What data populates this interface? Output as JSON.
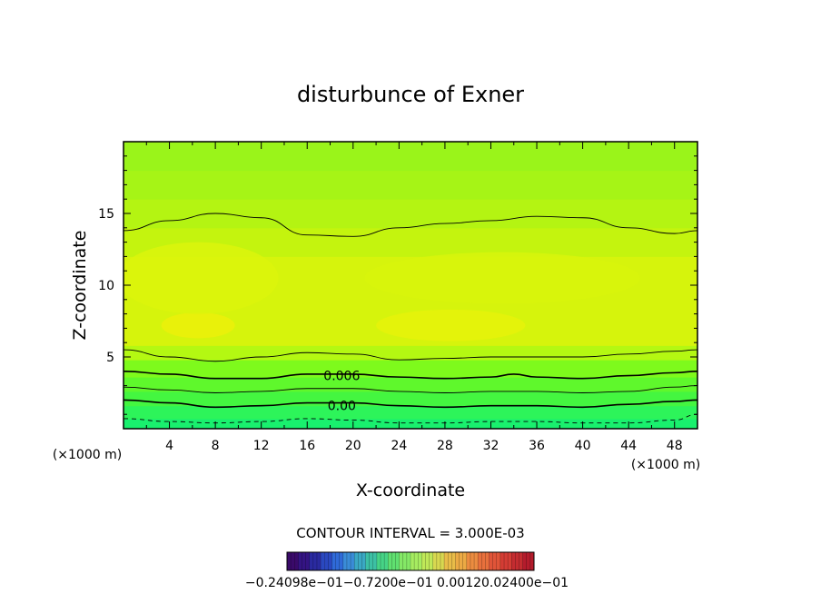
{
  "chart_data": {
    "type": "heatmap",
    "title": "disturbunce of Exner",
    "xlabel": "X-coordinate",
    "ylabel": "Z-coordinate",
    "x_unit": "(×1000 m)",
    "z_unit": "(×1000 m)",
    "xlim": [
      0,
      50
    ],
    "ylim": [
      0,
      20
    ],
    "x_ticks": [
      "4",
      "8",
      "12",
      "16",
      "20",
      "24",
      "28",
      "32",
      "36",
      "40",
      "44",
      "48"
    ],
    "y_ticks": [
      "5",
      "10",
      "15"
    ],
    "contour_interval_text": "CONTOUR INTERVAL = 3.000E-03",
    "contour_labels": [
      {
        "text": "0.006",
        "x": 16.8,
        "y": 3.7
      },
      {
        "text": "0.00",
        "x": 16.8,
        "y": 1.6
      }
    ],
    "contours": [
      {
        "style": "thin",
        "points": [
          [
            0,
            13.8
          ],
          [
            4,
            14.5
          ],
          [
            8,
            15.0
          ],
          [
            12,
            14.7
          ],
          [
            16,
            13.5
          ],
          [
            20,
            13.4
          ],
          [
            24,
            14.0
          ],
          [
            28,
            14.3
          ],
          [
            32,
            14.5
          ],
          [
            36,
            14.8
          ],
          [
            40,
            14.7
          ],
          [
            44,
            14.0
          ],
          [
            48,
            13.6
          ],
          [
            50,
            13.8
          ]
        ]
      },
      {
        "style": "thin",
        "points": [
          [
            0,
            5.5
          ],
          [
            4,
            5.0
          ],
          [
            8,
            4.7
          ],
          [
            12,
            5.0
          ],
          [
            16,
            5.3
          ],
          [
            20,
            5.2
          ],
          [
            24,
            4.8
          ],
          [
            28,
            4.9
          ],
          [
            32,
            5.0
          ],
          [
            36,
            5.0
          ],
          [
            40,
            5.0
          ],
          [
            44,
            5.2
          ],
          [
            48,
            5.4
          ],
          [
            50,
            5.5
          ]
        ]
      },
      {
        "style": "thick",
        "points": [
          [
            0,
            4.0
          ],
          [
            4,
            3.8
          ],
          [
            8,
            3.5
          ],
          [
            12,
            3.5
          ],
          [
            16,
            3.8
          ],
          [
            20,
            3.8
          ],
          [
            24,
            3.6
          ],
          [
            28,
            3.5
          ],
          [
            32,
            3.6
          ],
          [
            34,
            3.8
          ],
          [
            36,
            3.6
          ],
          [
            40,
            3.5
          ],
          [
            44,
            3.7
          ],
          [
            48,
            3.9
          ],
          [
            50,
            4.0
          ]
        ]
      },
      {
        "style": "thin",
        "points": [
          [
            0,
            2.9
          ],
          [
            4,
            2.7
          ],
          [
            8,
            2.5
          ],
          [
            12,
            2.6
          ],
          [
            16,
            2.8
          ],
          [
            20,
            2.8
          ],
          [
            24,
            2.6
          ],
          [
            28,
            2.5
          ],
          [
            32,
            2.6
          ],
          [
            36,
            2.6
          ],
          [
            40,
            2.5
          ],
          [
            44,
            2.6
          ],
          [
            48,
            2.9
          ],
          [
            50,
            3.0
          ]
        ]
      },
      {
        "style": "thick",
        "points": [
          [
            0,
            2.0
          ],
          [
            4,
            1.8
          ],
          [
            8,
            1.5
          ],
          [
            12,
            1.6
          ],
          [
            16,
            1.8
          ],
          [
            20,
            1.8
          ],
          [
            24,
            1.6
          ],
          [
            28,
            1.5
          ],
          [
            32,
            1.6
          ],
          [
            36,
            1.6
          ],
          [
            40,
            1.5
          ],
          [
            44,
            1.7
          ],
          [
            48,
            1.9
          ],
          [
            50,
            2.0
          ]
        ]
      },
      {
        "style": "dashed",
        "points": [
          [
            0,
            0.7
          ],
          [
            4,
            0.5
          ],
          [
            8,
            0.4
          ],
          [
            12,
            0.5
          ],
          [
            16,
            0.7
          ],
          [
            20,
            0.6
          ],
          [
            24,
            0.4
          ],
          [
            28,
            0.4
          ],
          [
            32,
            0.5
          ],
          [
            36,
            0.5
          ],
          [
            40,
            0.4
          ],
          [
            44,
            0.4
          ],
          [
            48,
            0.6
          ],
          [
            50,
            1.0
          ]
        ]
      }
    ],
    "color_bands": [
      {
        "z0": 0,
        "z1": 0.7,
        "color": "#19f06e"
      },
      {
        "z0": 0.7,
        "z1": 1.6,
        "color": "#2df45a"
      },
      {
        "z0": 1.6,
        "z1": 2.6,
        "color": "#44f640"
      },
      {
        "z0": 2.6,
        "z1": 3.6,
        "color": "#5ff82c"
      },
      {
        "z0": 3.6,
        "z1": 4.8,
        "color": "#7efa1c"
      },
      {
        "z0": 4.8,
        "z1": 5.8,
        "color": "#b4f812"
      },
      {
        "z0": 5.8,
        "z1": 12.0,
        "color": "#d6f40c"
      },
      {
        "z0": 12.0,
        "z1": 14.0,
        "color": "#c4f40e"
      },
      {
        "z0": 14.0,
        "z1": 16.0,
        "color": "#b4f412"
      },
      {
        "z0": 16.0,
        "z1": 18.0,
        "color": "#a6f416"
      },
      {
        "z0": 18.0,
        "z1": 20.0,
        "color": "#9af41a"
      }
    ],
    "highlight_patches": [
      {
        "x": 6.5,
        "y": 7.2,
        "rx": 3.2,
        "ry": 0.9,
        "color": "#ecf00a"
      },
      {
        "x": 28.5,
        "y": 7.2,
        "rx": 6.5,
        "ry": 1.1,
        "color": "#e6f20a"
      },
      {
        "x": 6.5,
        "y": 10.5,
        "rx": 7.0,
        "ry": 2.5,
        "color": "#dcf50c"
      },
      {
        "x": 33,
        "y": 10.5,
        "rx": 12,
        "ry": 1.8,
        "color": "#d8f50c"
      }
    ],
    "colorbar": {
      "tick_labels_text": "−0.24098e−01−0.7200e−01 0.00120.02400e−01",
      "colors": [
        "#3a0a6a",
        "#341483",
        "#2a2aa0",
        "#2a48c0",
        "#2f6ad8",
        "#3a8cd8",
        "#3aa8c4",
        "#3cc0a4",
        "#46d486",
        "#60e070",
        "#84e866",
        "#a6ec60",
        "#c0e858",
        "#d8d850",
        "#e8bc48",
        "#ecaa44",
        "#ec8c40",
        "#e8703c",
        "#e05438",
        "#d43c34",
        "#c42c30",
        "#b41c2c"
      ]
    }
  }
}
